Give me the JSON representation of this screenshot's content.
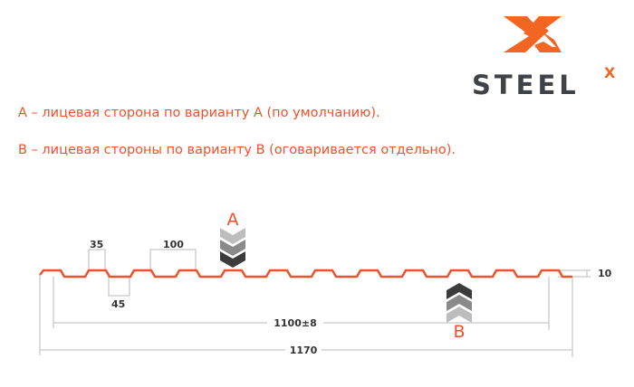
{
  "logo": {
    "text": "STEEL",
    "superscript": "X",
    "accent_color": "#f26522",
    "text_color": "#3f4247"
  },
  "descriptions": {
    "a": "A – лицевая сторона по варианту А (по умолчанию).",
    "b": "B – лицевая стороны по варианту B (оговаривается отдельно)."
  },
  "profile": {
    "color": "#f0502a",
    "waves": 12,
    "face_a_label": "A",
    "face_b_label": "B",
    "dimensions": {
      "top_width": "35",
      "pitch": "100",
      "bottom_width": "45",
      "height": "10",
      "useful_width": "1100±8",
      "full_width": "1170"
    }
  }
}
